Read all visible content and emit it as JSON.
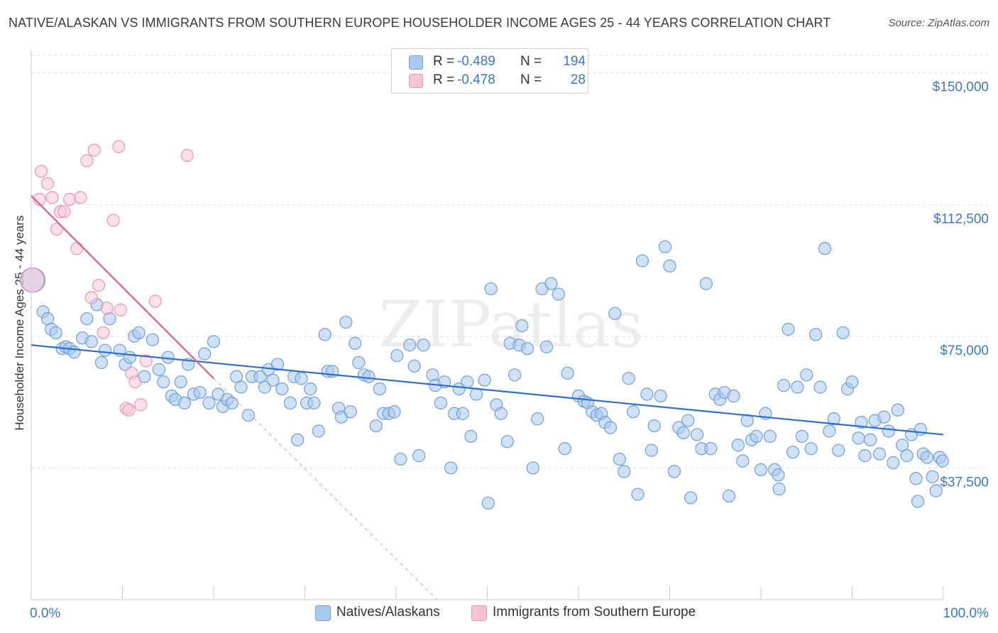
{
  "title": "NATIVE/ALASKAN VS IMMIGRANTS FROM SOUTHERN EUROPE HOUSEHOLDER INCOME AGES 25 - 44 YEARS CORRELATION CHART",
  "source": "Source: ZipAtlas.com",
  "watermark": "ZIPatlas",
  "legend": {
    "rows": [
      {
        "r_label": "R =",
        "r_value": "-0.489",
        "n_label": "N =",
        "n_value": "194"
      },
      {
        "r_label": "R =",
        "r_value": "-0.478",
        "n_label": "N =",
        "n_value": "28"
      }
    ]
  },
  "bottom_legend": {
    "series1": "Natives/Alaskans",
    "series2": "Immigrants from Southern Europe"
  },
  "colors": {
    "blue_fill": "#a9c8ef",
    "blue_stroke": "#6d9fdc",
    "blue_line": "#2f6fcf",
    "pink_fill": "#f6c3d2",
    "pink_stroke": "#e895b0",
    "pink_line": "#e0608a",
    "axis_text": "#3b78c4",
    "grid": "#d9d9d9"
  },
  "chart_data": {
    "type": "scatter",
    "title": "NATIVE/ALASKAN VS IMMIGRANTS FROM SOUTHERN EUROPE HOUSEHOLDER INCOME AGES 25 - 44 YEARS CORRELATION CHART",
    "xlabel": "",
    "ylabel": "Householder Income Ages 25 - 44 years",
    "x_tick_labels": [
      "0.0%",
      "100.0%"
    ],
    "y_ticks": [
      37500,
      75000,
      112500,
      150000
    ],
    "y_tick_labels": [
      "$37,500",
      "$75,000",
      "$112,500",
      "$150,000"
    ],
    "xlim": [
      0,
      100
    ],
    "ylim": [
      0,
      155000
    ],
    "grid": "horizontal dashed",
    "series": [
      {
        "name": "Natives/Alaskans",
        "color": "#6d9fdc",
        "trend": {
          "x0": 0,
          "y0": 72500,
          "x1": 100,
          "y1": 47000
        },
        "points": [
          [
            0.2,
            91000
          ],
          [
            1.3,
            82000
          ],
          [
            1.8,
            80000
          ],
          [
            2.2,
            77000
          ],
          [
            2.7,
            76000
          ],
          [
            3.4,
            71500
          ],
          [
            3.8,
            72000
          ],
          [
            4.2,
            71500
          ],
          [
            4.7,
            70500
          ],
          [
            5.6,
            74500
          ],
          [
            6.1,
            80000
          ],
          [
            6.6,
            73500
          ],
          [
            7.2,
            84000
          ],
          [
            7.7,
            67500
          ],
          [
            8.1,
            71000
          ],
          [
            8.6,
            80000
          ],
          [
            9.7,
            71000
          ],
          [
            10.3,
            67000
          ],
          [
            10.8,
            69000
          ],
          [
            11.3,
            75000
          ],
          [
            11.8,
            76000
          ],
          [
            12.4,
            63500
          ],
          [
            13.3,
            74000
          ],
          [
            14.0,
            65500
          ],
          [
            14.5,
            62000
          ],
          [
            15.0,
            69000
          ],
          [
            15.4,
            58000
          ],
          [
            15.8,
            57000
          ],
          [
            16.4,
            62000
          ],
          [
            16.8,
            56000
          ],
          [
            17.2,
            67000
          ],
          [
            17.8,
            58500
          ],
          [
            18.5,
            59000
          ],
          [
            19.0,
            70000
          ],
          [
            19.5,
            56000
          ],
          [
            20.0,
            73500
          ],
          [
            20.5,
            58500
          ],
          [
            21.0,
            55000
          ],
          [
            21.5,
            57000
          ],
          [
            22.0,
            56000
          ],
          [
            22.5,
            63500
          ],
          [
            23.0,
            60500
          ],
          [
            23.8,
            52500
          ],
          [
            24.2,
            63500
          ],
          [
            25.1,
            63500
          ],
          [
            25.6,
            60500
          ],
          [
            26.0,
            65500
          ],
          [
            26.5,
            62500
          ],
          [
            27.0,
            67000
          ],
          [
            27.5,
            60000
          ],
          [
            28.4,
            56000
          ],
          [
            28.8,
            63500
          ],
          [
            29.2,
            45500
          ],
          [
            29.6,
            63000
          ],
          [
            30.2,
            56000
          ],
          [
            30.6,
            60000
          ],
          [
            31.0,
            56000
          ],
          [
            31.5,
            48000
          ],
          [
            32.2,
            75500
          ],
          [
            32.5,
            65000
          ],
          [
            33.0,
            65000
          ],
          [
            33.7,
            54500
          ],
          [
            34.0,
            52000
          ],
          [
            34.5,
            79000
          ],
          [
            35.0,
            53500
          ],
          [
            35.5,
            73000
          ],
          [
            35.9,
            67500
          ],
          [
            36.5,
            64000
          ],
          [
            37.0,
            63500
          ],
          [
            37.8,
            49500
          ],
          [
            38.2,
            60000
          ],
          [
            38.6,
            53000
          ],
          [
            39.2,
            53000
          ],
          [
            39.8,
            53500
          ],
          [
            40.1,
            69500
          ],
          [
            40.5,
            40000
          ],
          [
            41.5,
            72500
          ],
          [
            42.0,
            66500
          ],
          [
            42.5,
            41000
          ],
          [
            43.0,
            72500
          ],
          [
            44.0,
            64000
          ],
          [
            44.3,
            61000
          ],
          [
            44.9,
            56000
          ],
          [
            45.3,
            62000
          ],
          [
            46.0,
            37500
          ],
          [
            46.4,
            53000
          ],
          [
            46.9,
            60000
          ],
          [
            47.3,
            53000
          ],
          [
            47.8,
            62000
          ],
          [
            48.2,
            46500
          ],
          [
            48.8,
            58500
          ],
          [
            49.7,
            62500
          ],
          [
            50.1,
            27500
          ],
          [
            50.4,
            88500
          ],
          [
            51.0,
            55500
          ],
          [
            51.5,
            53000
          ],
          [
            52.2,
            45000
          ],
          [
            52.5,
            73000
          ],
          [
            53.0,
            64000
          ],
          [
            53.5,
            72500
          ],
          [
            53.8,
            78000
          ],
          [
            54.4,
            71500
          ],
          [
            55.0,
            37500
          ],
          [
            55.5,
            51500
          ],
          [
            56.0,
            88500
          ],
          [
            56.5,
            72000
          ],
          [
            57.0,
            90000
          ],
          [
            57.8,
            87000
          ],
          [
            58.5,
            43000
          ],
          [
            58.8,
            64500
          ],
          [
            60.0,
            58000
          ],
          [
            60.6,
            56500
          ],
          [
            61.0,
            56000
          ],
          [
            61.5,
            53500
          ],
          [
            62.0,
            52500
          ],
          [
            62.5,
            53000
          ],
          [
            62.9,
            50500
          ],
          [
            63.5,
            49000
          ],
          [
            64.0,
            81500
          ],
          [
            64.5,
            40000
          ],
          [
            65.0,
            36500
          ],
          [
            65.5,
            63000
          ],
          [
            66.0,
            53500
          ],
          [
            66.5,
            30000
          ],
          [
            67.0,
            96500
          ],
          [
            67.5,
            58500
          ],
          [
            68.0,
            42500
          ],
          [
            68.3,
            49500
          ],
          [
            69.0,
            58000
          ],
          [
            69.5,
            100500
          ],
          [
            70.0,
            95000
          ],
          [
            70.5,
            36500
          ],
          [
            71.0,
            49000
          ],
          [
            71.5,
            47500
          ],
          [
            72.0,
            51000
          ],
          [
            72.3,
            29000
          ],
          [
            73.0,
            47000
          ],
          [
            73.5,
            43000
          ],
          [
            74.0,
            90000
          ],
          [
            74.5,
            43000
          ],
          [
            75.0,
            58500
          ],
          [
            75.5,
            57000
          ],
          [
            76.0,
            59000
          ],
          [
            76.5,
            29500
          ],
          [
            77.0,
            58000
          ],
          [
            77.5,
            44000
          ],
          [
            78.0,
            39500
          ],
          [
            78.5,
            51000
          ],
          [
            79.0,
            45500
          ],
          [
            79.5,
            46500
          ],
          [
            80.0,
            37000
          ],
          [
            80.5,
            53000
          ],
          [
            81.0,
            46500
          ],
          [
            81.5,
            37000
          ],
          [
            81.9,
            35500
          ],
          [
            82.0,
            31500
          ],
          [
            82.5,
            61000
          ],
          [
            83.0,
            77000
          ],
          [
            83.5,
            42000
          ],
          [
            84.0,
            60500
          ],
          [
            84.5,
            46500
          ],
          [
            85.0,
            64000
          ],
          [
            85.5,
            43000
          ],
          [
            86.0,
            75500
          ],
          [
            86.5,
            60500
          ],
          [
            87.0,
            100000
          ],
          [
            87.5,
            48000
          ],
          [
            88.0,
            51500
          ],
          [
            88.5,
            42500
          ],
          [
            89.0,
            76000
          ],
          [
            89.5,
            60000
          ],
          [
            90.0,
            62000
          ],
          [
            90.7,
            46000
          ],
          [
            91.0,
            50500
          ],
          [
            91.4,
            41000
          ],
          [
            92.0,
            45500
          ],
          [
            92.5,
            51000
          ],
          [
            93.0,
            41500
          ],
          [
            93.5,
            52000
          ],
          [
            94.0,
            48000
          ],
          [
            94.5,
            39000
          ],
          [
            95.0,
            54000
          ],
          [
            95.5,
            44000
          ],
          [
            96.0,
            41000
          ],
          [
            96.5,
            47000
          ],
          [
            97.0,
            34500
          ],
          [
            97.2,
            28000
          ],
          [
            97.5,
            48500
          ],
          [
            97.8,
            41500
          ],
          [
            98.2,
            40500
          ],
          [
            98.8,
            35000
          ],
          [
            99.2,
            31000
          ],
          [
            99.6,
            40500
          ],
          [
            99.9,
            39500
          ]
        ]
      },
      {
        "name": "Immigrants from Southern Europe",
        "color": "#e895b0",
        "trend": {
          "x0": 0,
          "y0": 115000,
          "x1": 20,
          "y1": 63000
        },
        "trend_dashed_extension": {
          "x0": 20,
          "y0": 63000,
          "x1": 44.5,
          "y1": 0
        },
        "points": [
          [
            0.1,
            91000
          ],
          [
            0.9,
            114000
          ],
          [
            1.1,
            122000
          ],
          [
            1.8,
            118500
          ],
          [
            2.3,
            114500
          ],
          [
            2.8,
            105500
          ],
          [
            3.2,
            110500
          ],
          [
            3.6,
            110500
          ],
          [
            4.2,
            114000
          ],
          [
            5.0,
            100000
          ],
          [
            5.4,
            114500
          ],
          [
            6.1,
            125000
          ],
          [
            6.6,
            86000
          ],
          [
            6.9,
            128000
          ],
          [
            7.4,
            89500
          ],
          [
            7.9,
            76000
          ],
          [
            8.3,
            83000
          ],
          [
            9.0,
            108000
          ],
          [
            9.6,
            129000
          ],
          [
            9.8,
            82500
          ],
          [
            10.4,
            54500
          ],
          [
            10.7,
            54000
          ],
          [
            11.0,
            64500
          ],
          [
            11.4,
            62000
          ],
          [
            12.0,
            55500
          ],
          [
            12.6,
            68000
          ],
          [
            13.6,
            85000
          ],
          [
            17.1,
            126500
          ]
        ]
      }
    ]
  }
}
